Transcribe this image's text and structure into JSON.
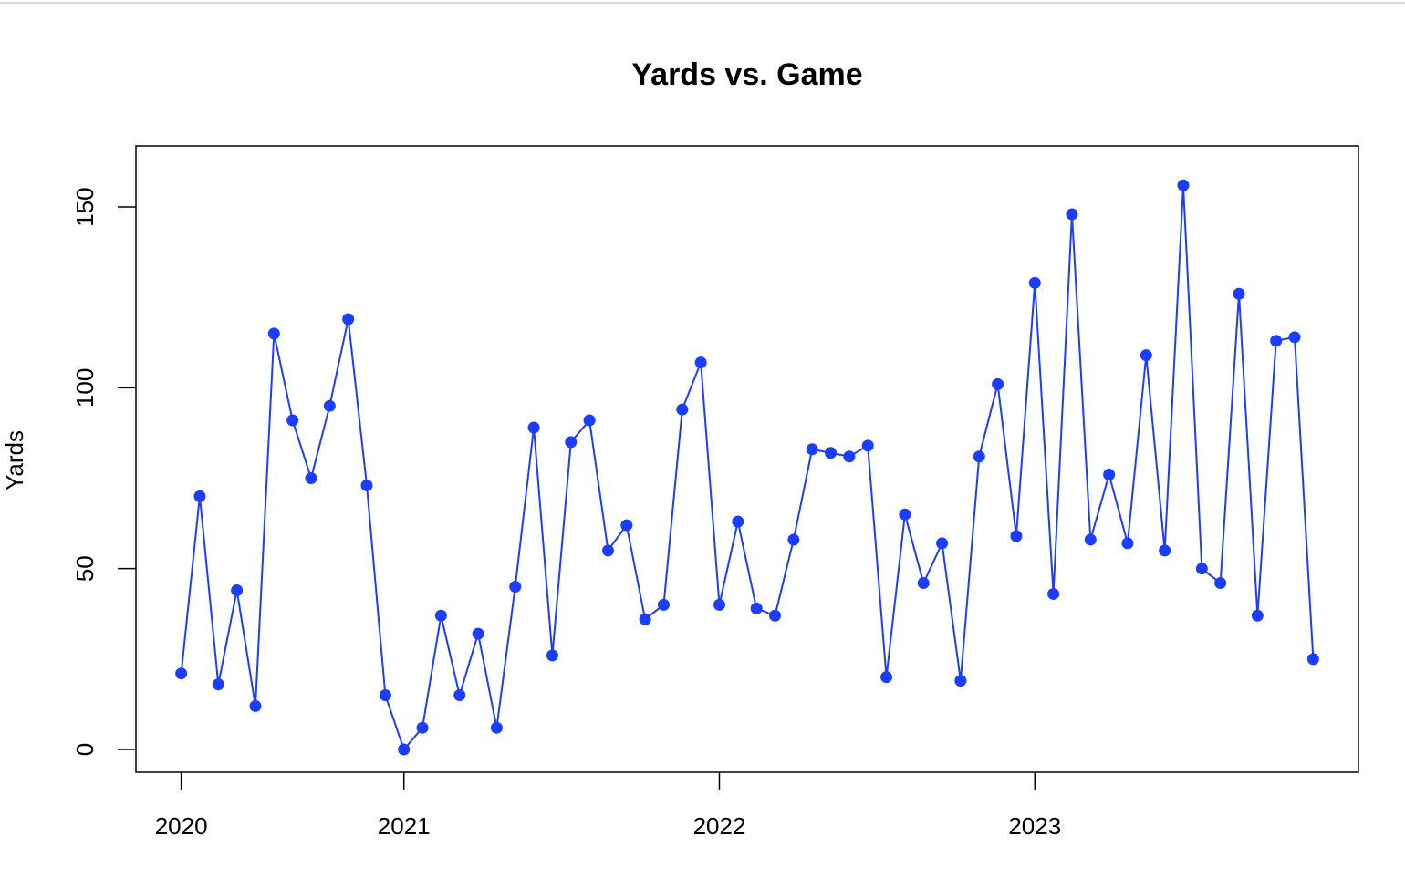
{
  "chart_data": {
    "type": "line",
    "title": "Yards vs. Game",
    "y_label": "Yards",
    "categories": [
      "2020",
      null,
      null,
      null,
      null,
      null,
      null,
      null,
      null,
      null,
      null,
      null,
      "2021",
      null,
      null,
      null,
      null,
      null,
      null,
      null,
      null,
      null,
      null,
      null,
      null,
      null,
      null,
      null,
      null,
      "2022",
      null,
      null,
      null,
      null,
      null,
      null,
      null,
      null,
      null,
      null,
      null,
      null,
      null,
      null,
      null,
      null,
      "2023",
      null,
      null,
      null,
      null,
      null,
      null,
      null,
      null,
      null,
      null,
      null,
      null,
      null,
      null,
      null
    ],
    "series": [
      {
        "name": "Yards",
        "color": "#1a3dff",
        "values": [
          21,
          70,
          18,
          44,
          12,
          115,
          91,
          75,
          95,
          119,
          73,
          15,
          0,
          6,
          37,
          15,
          32,
          6,
          45,
          89,
          26,
          85,
          91,
          55,
          62,
          36,
          40,
          94,
          107,
          40,
          63,
          39,
          37,
          58,
          83,
          82,
          81,
          84,
          20,
          65,
          46,
          57,
          19,
          81,
          101,
          59,
          129,
          43,
          148,
          58,
          76,
          57,
          109,
          55,
          156,
          50,
          46,
          126,
          37,
          113,
          114,
          25
        ]
      }
    ],
    "xlim": [
      -2.44,
      63.44
    ],
    "ylim": [
      -6.3,
      166.9
    ],
    "yticks": [
      0,
      50,
      100,
      150
    ],
    "markers": true,
    "grid": false
  }
}
